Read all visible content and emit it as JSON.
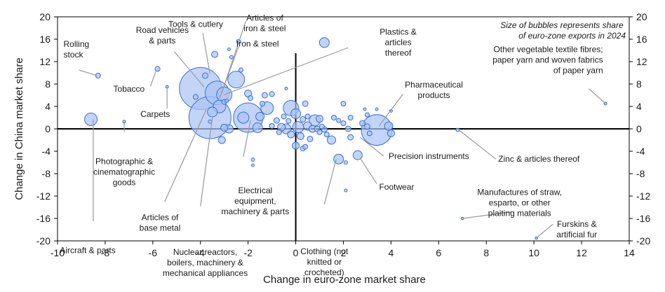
{
  "chart_data": {
    "type": "scatter",
    "xlabel": "Change in euro-zone market share",
    "ylabel": "Change in China market share",
    "xlim": [
      -10,
      14
    ],
    "ylim": [
      -20,
      20
    ],
    "x_ticks": [
      "-10",
      "-8",
      "-6",
      "-4",
      "-2",
      "0",
      "2",
      "4",
      "6",
      "8",
      "10",
      "12",
      "14"
    ],
    "y_ticks": [
      "20",
      "16",
      "12",
      "8",
      "4",
      "0",
      "-4",
      "-8",
      "-12",
      "-16",
      "-20"
    ],
    "note": [
      "Size of bubbles represents share",
      "of euro-zone exports in 2024"
    ],
    "points": [
      {
        "x": -4.0,
        "y": 7.2,
        "r": 30
      },
      {
        "x": -3.6,
        "y": 2.0,
        "r": 30
      },
      {
        "x": -3.3,
        "y": 6.4,
        "r": 17
      },
      {
        "x": -2.0,
        "y": 2.0,
        "r": 21
      },
      {
        "x": 3.4,
        "y": -0.2,
        "r": 22
      },
      {
        "x": -8.6,
        "y": 1.7,
        "r": 9
      },
      {
        "x": -8.3,
        "y": 9.5,
        "r": 3.5
      },
      {
        "x": -7.2,
        "y": 1.3,
        "r": 2
      },
      {
        "x": -5.8,
        "y": 10.7,
        "r": 3.5
      },
      {
        "x": -5.4,
        "y": 7.5,
        "r": 2
      },
      {
        "x": -4.2,
        "y": 5.7,
        "r": 3.5
      },
      {
        "x": -3.8,
        "y": 9.5,
        "r": 4
      },
      {
        "x": -3.6,
        "y": 1.3,
        "r": 2.5
      },
      {
        "x": -3.5,
        "y": 3.0,
        "r": 7
      },
      {
        "x": -3.4,
        "y": 13.3,
        "r": 4.5
      },
      {
        "x": -3.2,
        "y": 4.0,
        "r": 9
      },
      {
        "x": -3.1,
        "y": -2.0,
        "r": 5
      },
      {
        "x": -3.0,
        "y": 6.1,
        "r": 11
      },
      {
        "x": -3.0,
        "y": 0.2,
        "r": 5
      },
      {
        "x": -3.0,
        "y": 4.8,
        "r": 3.5
      },
      {
        "x": -2.9,
        "y": 5.0,
        "r": 2.5
      },
      {
        "x": -2.8,
        "y": 0.0,
        "r": 6
      },
      {
        "x": -2.8,
        "y": 14.2,
        "r": 2
      },
      {
        "x": -2.7,
        "y": 12.8,
        "r": 2.5
      },
      {
        "x": -2.5,
        "y": 8.8,
        "r": 12
      },
      {
        "x": -2.4,
        "y": 15.6,
        "r": 3
      },
      {
        "x": -2.3,
        "y": 10.5,
        "r": 3
      },
      {
        "x": -2.2,
        "y": 2.0,
        "r": 8
      },
      {
        "x": -2.0,
        "y": 6.3,
        "r": 5
      },
      {
        "x": -1.9,
        "y": 5.5,
        "r": 3.5
      },
      {
        "x": -1.8,
        "y": -5.5,
        "r": 2.5
      },
      {
        "x": -1.8,
        "y": -6.5,
        "r": 2
      },
      {
        "x": -1.6,
        "y": 0.2,
        "r": 7
      },
      {
        "x": -1.5,
        "y": 2.2,
        "r": 6
      },
      {
        "x": -1.4,
        "y": 4.5,
        "r": 3.5
      },
      {
        "x": -1.3,
        "y": 6.0,
        "r": 4
      },
      {
        "x": -1.2,
        "y": 3.7,
        "r": 9
      },
      {
        "x": -1.0,
        "y": 6.2,
        "r": 3.5
      },
      {
        "x": -1.0,
        "y": 0.5,
        "r": 3.5
      },
      {
        "x": -0.8,
        "y": 1.5,
        "r": 4
      },
      {
        "x": -0.7,
        "y": -0.6,
        "r": 3.5
      },
      {
        "x": -0.6,
        "y": 0.3,
        "r": 5.5
      },
      {
        "x": -0.5,
        "y": 2.2,
        "r": 3.5
      },
      {
        "x": -0.4,
        "y": 0.0,
        "r": 7
      },
      {
        "x": -0.4,
        "y": 7.2,
        "r": 2
      },
      {
        "x": -0.3,
        "y": 1.4,
        "r": 3.5
      },
      {
        "x": -0.2,
        "y": 3.7,
        "r": 11
      },
      {
        "x": -0.2,
        "y": -1.0,
        "r": 5
      },
      {
        "x": 0.0,
        "y": 2.7,
        "r": 7
      },
      {
        "x": 0.0,
        "y": -3.0,
        "r": 5
      },
      {
        "x": 0.1,
        "y": 0.3,
        "r": 8
      },
      {
        "x": 0.2,
        "y": -1.3,
        "r": 5
      },
      {
        "x": 0.3,
        "y": 1.7,
        "r": 4
      },
      {
        "x": 0.3,
        "y": -3.5,
        "r": 3.5
      },
      {
        "x": 0.4,
        "y": 4.5,
        "r": 4
      },
      {
        "x": 0.4,
        "y": -3.2,
        "r": 3.5
      },
      {
        "x": 0.5,
        "y": 2.2,
        "r": 3.5
      },
      {
        "x": 0.5,
        "y": 0.5,
        "r": 6
      },
      {
        "x": 0.6,
        "y": -1.8,
        "r": 4
      },
      {
        "x": 0.7,
        "y": 0.0,
        "r": 5
      },
      {
        "x": 0.8,
        "y": 1.5,
        "r": 8
      },
      {
        "x": 0.9,
        "y": 0.0,
        "r": 4
      },
      {
        "x": 1.0,
        "y": 1.8,
        "r": 5
      },
      {
        "x": 1.0,
        "y": -0.6,
        "r": 3.5
      },
      {
        "x": 1.1,
        "y": 0.4,
        "r": 3.5
      },
      {
        "x": 1.2,
        "y": 15.4,
        "r": 7
      },
      {
        "x": 1.2,
        "y": -0.1,
        "r": 4
      },
      {
        "x": 1.3,
        "y": -1.0,
        "r": 3.5
      },
      {
        "x": 1.5,
        "y": -2.0,
        "r": 6
      },
      {
        "x": 1.6,
        "y": 2.0,
        "r": 3.5
      },
      {
        "x": 1.8,
        "y": -5.4,
        "r": 7
      },
      {
        "x": 1.8,
        "y": 1.5,
        "r": 3
      },
      {
        "x": 2.0,
        "y": 4.5,
        "r": 3.5
      },
      {
        "x": 2.0,
        "y": 1.0,
        "r": 3.5
      },
      {
        "x": 2.1,
        "y": -11.0,
        "r": 2
      },
      {
        "x": 2.1,
        "y": -6.0,
        "r": 2.5
      },
      {
        "x": 2.2,
        "y": 0.0,
        "r": 4
      },
      {
        "x": 2.3,
        "y": 2.0,
        "r": 3.5
      },
      {
        "x": 2.3,
        "y": -1.5,
        "r": 4
      },
      {
        "x": 2.6,
        "y": -4.7,
        "r": 6.5
      },
      {
        "x": 2.8,
        "y": 1.0,
        "r": 4
      },
      {
        "x": 2.9,
        "y": 3.5,
        "r": 2
      },
      {
        "x": 3.0,
        "y": 2.5,
        "r": 3
      },
      {
        "x": 3.0,
        "y": 0.4,
        "r": 4
      },
      {
        "x": 3.1,
        "y": -0.8,
        "r": 3.5
      },
      {
        "x": 3.4,
        "y": 3.5,
        "r": 2
      },
      {
        "x": 3.9,
        "y": 0.5,
        "r": 6
      },
      {
        "x": 4.0,
        "y": -0.8,
        "r": 5
      },
      {
        "x": 4.0,
        "y": 3.2,
        "r": 2
      },
      {
        "x": 6.8,
        "y": -0.2,
        "r": 2.5
      },
      {
        "x": 7.0,
        "y": -16.0,
        "r": 1.8
      },
      {
        "x": 10.1,
        "y": -19.5,
        "r": 1.8
      },
      {
        "x": 13.0,
        "y": 4.5,
        "r": 2
      }
    ],
    "annotations": [
      {
        "lines": [
          "Rolling",
          "stock"
        ],
        "anchor": "start",
        "lx": -9.75,
        "ly": 14.6,
        "line": [
          [
            -9.1,
            10.5
          ],
          [
            -8.35,
            9.5
          ]
        ]
      },
      {
        "lines": [
          "Road vehicles",
          "& parts"
        ],
        "anchor": "middle",
        "lx": -5.6,
        "ly": 17.1,
        "line": [
          [
            -5.1,
            13.8
          ],
          [
            -3.85,
            7.5
          ]
        ]
      },
      {
        "lines": [
          "Tools & cutlery"
        ],
        "anchor": "middle",
        "lx": -4.2,
        "ly": 18.2,
        "line": [
          [
            -3.9,
            17.1
          ],
          [
            -3.6,
            9.8
          ]
        ]
      },
      {
        "lines": [
          "Articles of",
          "iron & steel"
        ],
        "anchor": "middle",
        "lx": -1.3,
        "ly": 19.3,
        "line": [
          [
            -2.1,
            19.2
          ],
          [
            -3.1,
            6.5
          ]
        ]
      },
      {
        "lines": [
          "Iron & steel"
        ],
        "anchor": "middle",
        "lx": -1.6,
        "ly": 14.7,
        "line": [
          [
            -2.4,
            14.7
          ],
          [
            -3.2,
            5.4
          ]
        ]
      },
      {
        "lines": [
          "Plastics &",
          "articles",
          "thereof"
        ],
        "anchor": "middle",
        "lx": 4.3,
        "ly": 16.8,
        "line": [
          [
            2.2,
            14.5
          ],
          [
            -3.0,
            6.1
          ]
        ]
      },
      {
        "lines": [
          "Tobacco"
        ],
        "anchor": "middle",
        "lx": -7.0,
        "ly": 6.6,
        "line": [
          [
            -6.1,
            7.6
          ],
          [
            -5.85,
            10.5
          ]
        ]
      },
      {
        "lines": [
          "Carpets"
        ],
        "anchor": "middle",
        "lx": -5.9,
        "ly": 2.1,
        "line": [
          [
            -5.4,
            3.6
          ],
          [
            -5.4,
            7.5
          ]
        ]
      },
      {
        "lines": [
          "Photographic &",
          "cinematographic",
          "goods"
        ],
        "anchor": "middle",
        "lx": -7.2,
        "ly": -6.3,
        "line": [
          [
            -7.2,
            -0.5
          ],
          [
            -7.2,
            1.3
          ]
        ]
      },
      {
        "lines": [
          "Articles of",
          "base metal"
        ],
        "anchor": "middle",
        "lx": -5.7,
        "ly": -16.3,
        "line": [
          [
            -5.5,
            -13.0
          ],
          [
            -3.75,
            3.5
          ]
        ]
      },
      {
        "lines": [
          "Nuclear reactors,",
          "boilers, machinery &",
          "mechanical appliances"
        ],
        "anchor": "middle",
        "lx": -3.8,
        "ly": -22.5,
        "line": [
          [
            -4.0,
            -13.8
          ],
          [
            -3.5,
            2.0
          ]
        ]
      },
      {
        "lines": [
          "Electrical",
          "equipment,",
          "machinery & parts"
        ],
        "anchor": "middle",
        "lx": -1.7,
        "ly": -11.5,
        "line": [
          [
            -2.2,
            -5.0
          ],
          [
            -1.9,
            1.5
          ]
        ]
      },
      {
        "lines": [
          "Aircraft & parts"
        ],
        "anchor": "start",
        "lx": -9.9,
        "ly": -22.2,
        "line": [
          [
            -8.5,
            -16.5
          ],
          [
            -8.5,
            1.7
          ]
        ]
      },
      {
        "lines": [
          "Clothing (not",
          "knitted or",
          "crocheted)"
        ],
        "anchor": "middle",
        "lx": 1.2,
        "ly": -22.4,
        "line": [
          [
            1.2,
            -13.5
          ],
          [
            1.7,
            -5.4
          ]
        ]
      },
      {
        "lines": [
          "Footwear"
        ],
        "anchor": "start",
        "lx": 3.5,
        "ly": -10.9,
        "line": [
          [
            3.4,
            -9.8
          ],
          [
            2.7,
            -5.2
          ]
        ]
      },
      {
        "lines": [
          "Precision instruments"
        ],
        "anchor": "start",
        "lx": 3.9,
        "ly": -5.4,
        "line": [
          [
            3.7,
            -4.9
          ],
          [
            2.7,
            -1.5
          ]
        ]
      },
      {
        "lines": [
          "Pharmaceutical",
          "products"
        ],
        "anchor": "middle",
        "lx": 5.8,
        "ly": 7.4,
        "line": [
          [
            4.5,
            6.2
          ],
          [
            3.5,
            0.5
          ]
        ]
      },
      {
        "lines": [
          "Zinc & articles thereof"
        ],
        "anchor": "start",
        "lx": 8.5,
        "ly": -5.9,
        "line": [
          [
            8.4,
            -5.4
          ],
          [
            6.85,
            -0.2
          ]
        ]
      },
      {
        "lines": [
          "Manufactures of straw,",
          "esparto, or other",
          "plaiting materials"
        ],
        "anchor": "middle",
        "lx": 9.4,
        "ly": -11.8,
        "line": [
          [
            9.1,
            -14.8
          ],
          [
            7.0,
            -16.0
          ]
        ]
      },
      {
        "lines": [
          "Furskins &",
          "artificial fur"
        ],
        "anchor": "middle",
        "lx": 11.8,
        "ly": -17.5,
        "line": [
          [
            10.8,
            -17.0
          ],
          [
            10.1,
            -19.5
          ]
        ]
      },
      {
        "lines": [
          "Other vegetable textile fibres;",
          "paper yarn and woven fabrics",
          "of paper yarn"
        ],
        "anchor": "end",
        "lx": 12.9,
        "ly": 13.7,
        "line": [
          [
            12.3,
            7.2
          ],
          [
            13.0,
            4.5
          ]
        ]
      }
    ]
  }
}
